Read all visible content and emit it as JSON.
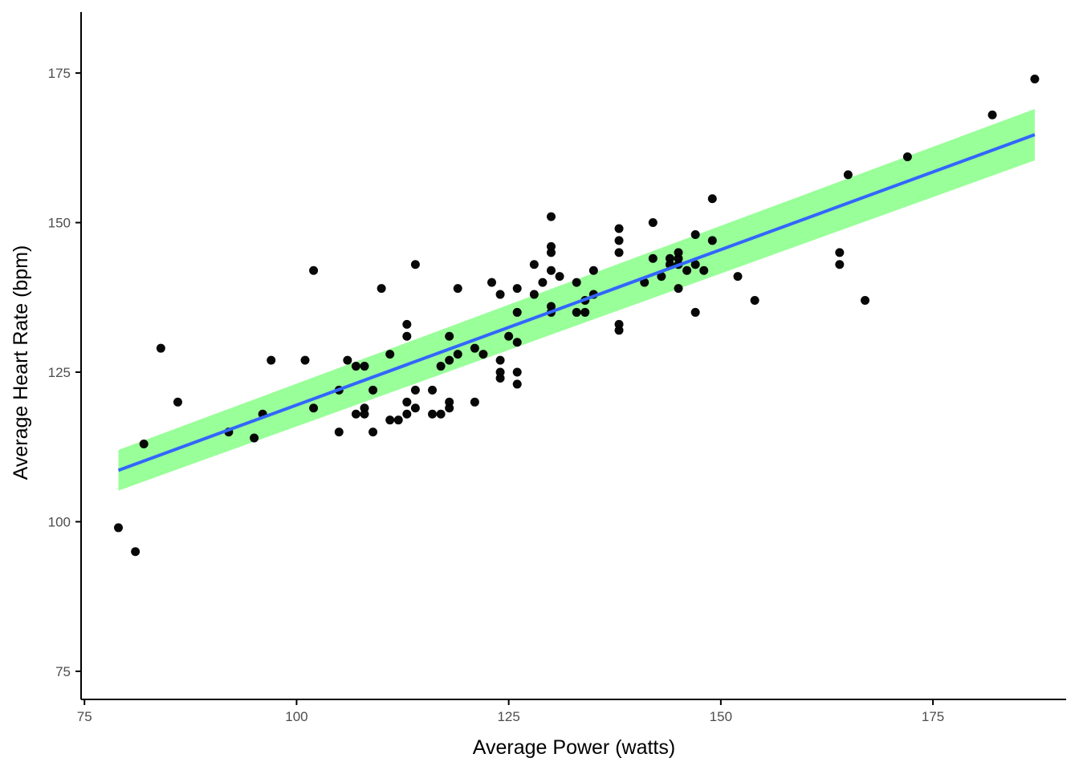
{
  "chart_data": {
    "type": "scatter",
    "title": "",
    "xlabel": "Average Power (watts)",
    "ylabel": "Average Heart Rate (bpm)",
    "xlim": [
      74.6,
      190.7
    ],
    "ylim": [
      70.3,
      185.2
    ],
    "x_ticks": [
      75,
      100,
      125,
      150,
      175
    ],
    "y_ticks": [
      75,
      100,
      125,
      150,
      175
    ],
    "x_tick_labels": [
      "75",
      "100",
      "125",
      "150",
      "175"
    ],
    "y_tick_labels": [
      "75",
      "100",
      "125",
      "150",
      "175"
    ],
    "grid": false,
    "legend": "none",
    "colors": {
      "points": "#000000",
      "fit_line": "#3366ff",
      "confidence_band": "#99ff99",
      "axis": "#000000",
      "tick_label": "#4d4d4d"
    },
    "points": [
      [
        79,
        99
      ],
      [
        81,
        95
      ],
      [
        82,
        113
      ],
      [
        84,
        129
      ],
      [
        86,
        120
      ],
      [
        92,
        115
      ],
      [
        95,
        114
      ],
      [
        96,
        118
      ],
      [
        97,
        127
      ],
      [
        101,
        127
      ],
      [
        102,
        142
      ],
      [
        102,
        119
      ],
      [
        105,
        122
      ],
      [
        105,
        115
      ],
      [
        106,
        127
      ],
      [
        107,
        126
      ],
      [
        107,
        118
      ],
      [
        108,
        126
      ],
      [
        108,
        119
      ],
      [
        108,
        118
      ],
      [
        109,
        122
      ],
      [
        109,
        115
      ],
      [
        110,
        139
      ],
      [
        111,
        128
      ],
      [
        111,
        117
      ],
      [
        112,
        117
      ],
      [
        113,
        133
      ],
      [
        113,
        131
      ],
      [
        113,
        120
      ],
      [
        113,
        118
      ],
      [
        114,
        143
      ],
      [
        114,
        122
      ],
      [
        114,
        119
      ],
      [
        116,
        122
      ],
      [
        116,
        118
      ],
      [
        117,
        126
      ],
      [
        117,
        118
      ],
      [
        118,
        131
      ],
      [
        118,
        127
      ],
      [
        118,
        120
      ],
      [
        118,
        119
      ],
      [
        119,
        139
      ],
      [
        119,
        128
      ],
      [
        121,
        129
      ],
      [
        121,
        120
      ],
      [
        122,
        128
      ],
      [
        123,
        140
      ],
      [
        124,
        138
      ],
      [
        124,
        127
      ],
      [
        124,
        125
      ],
      [
        124,
        124
      ],
      [
        125,
        131
      ],
      [
        126,
        139
      ],
      [
        126,
        135
      ],
      [
        126,
        130
      ],
      [
        126,
        125
      ],
      [
        126,
        123
      ],
      [
        128,
        143
      ],
      [
        128,
        138
      ],
      [
        129,
        140
      ],
      [
        130,
        151
      ],
      [
        130,
        146
      ],
      [
        130,
        145
      ],
      [
        130,
        142
      ],
      [
        130,
        136
      ],
      [
        130,
        135
      ],
      [
        131,
        141
      ],
      [
        133,
        140
      ],
      [
        133,
        135
      ],
      [
        134,
        137
      ],
      [
        134,
        135
      ],
      [
        135,
        142
      ],
      [
        135,
        138
      ],
      [
        138,
        149
      ],
      [
        138,
        147
      ],
      [
        138,
        145
      ],
      [
        138,
        133
      ],
      [
        138,
        132
      ],
      [
        141,
        140
      ],
      [
        142,
        150
      ],
      [
        142,
        144
      ],
      [
        143,
        141
      ],
      [
        144,
        144
      ],
      [
        144,
        143
      ],
      [
        145,
        145
      ],
      [
        145,
        144
      ],
      [
        145,
        143
      ],
      [
        145,
        139
      ],
      [
        146,
        142
      ],
      [
        147,
        148
      ],
      [
        147,
        143
      ],
      [
        147,
        135
      ],
      [
        148,
        142
      ],
      [
        149,
        154
      ],
      [
        149,
        147
      ],
      [
        152,
        141
      ],
      [
        154,
        137
      ],
      [
        164,
        145
      ],
      [
        164,
        143
      ],
      [
        165,
        158
      ],
      [
        167,
        137
      ],
      [
        172,
        161
      ],
      [
        182,
        168
      ],
      [
        187,
        174
      ]
    ],
    "fit": {
      "x": [
        79,
        187
      ],
      "y": [
        108.6,
        164.7
      ],
      "ci_lower": [
        105.2,
        160.4
      ],
      "ci_upper": [
        112.0,
        169.0
      ]
    }
  }
}
